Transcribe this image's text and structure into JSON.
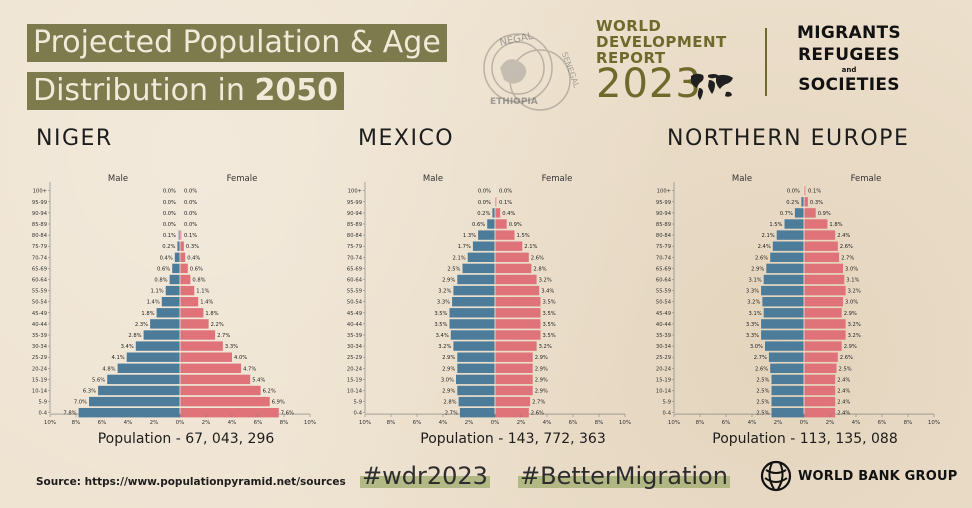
{
  "header": {
    "title_line1": "Projected Population & Age",
    "title_line2_prefix": "Distribution in ",
    "title_line2_year": "2050",
    "stamp_text_top": "NEGAL",
    "stamp_text_right": "SENEGAL",
    "stamp_text_bottom": "ETHIOPIA",
    "wdr_line1": "WORLD",
    "wdr_line2": "DEVELOPMENT",
    "wdr_line3": "REPORT",
    "wdr_year": "2023",
    "mig_line1": "MIGRANTS",
    "mig_line2": "REFUGEES",
    "mig_and": "and",
    "mig_line3": "SOCIETIES"
  },
  "footer": {
    "source": "Source: https://www.populationpyramid.net/sources",
    "hashtag1": "#wdr2023",
    "hashtag2": "#BetterMigration",
    "org": "WORLD BANK GROUP"
  },
  "colors": {
    "male": "#4c7c9a",
    "female": "#e0727a",
    "title_bg": "#7d7a4e",
    "accent_olive": "#6e6a2c",
    "region_highlight": "#8fb6bd"
  },
  "chart_data": [
    {
      "type": "bar",
      "orientation": "horizontal-pyramid",
      "region": "NIGER",
      "population_label": "Population - 67, 043, 296",
      "male_label": "Male",
      "female_label": "Female",
      "age_groups": [
        "100+",
        "95-99",
        "90-94",
        "85-89",
        "80-84",
        "75-79",
        "70-74",
        "65-69",
        "60-64",
        "55-59",
        "50-54",
        "45-49",
        "40-44",
        "35-39",
        "30-34",
        "25-29",
        "20-24",
        "15-19",
        "10-14",
        "5-9",
        "0-4"
      ],
      "male": [
        0.0,
        0.0,
        0.0,
        0.0,
        0.1,
        0.2,
        0.4,
        0.6,
        0.8,
        1.1,
        1.4,
        1.8,
        2.3,
        2.8,
        3.4,
        4.1,
        4.8,
        5.6,
        6.3,
        7.0,
        7.8
      ],
      "female": [
        0.0,
        0.0,
        0.0,
        0.0,
        0.1,
        0.3,
        0.4,
        0.6,
        0.8,
        1.1,
        1.4,
        1.8,
        2.2,
        2.7,
        3.3,
        4.0,
        4.7,
        5.4,
        6.2,
        6.9,
        7.6
      ],
      "male_labels": [
        "0.0%",
        "0.0%",
        "0.0%",
        "0.0%",
        "0.1%",
        "0.2%",
        "0.4%",
        "0.6%",
        "0.8%",
        "1.1%",
        "1.4%",
        "1.8%",
        "2.3%",
        "2.8%",
        "3.4%",
        "4.1%",
        "4.8%",
        "5.6%",
        "6.3%",
        "7.0%",
        "7.8%"
      ],
      "female_labels": [
        "0.0%",
        "0.0%",
        "0.0%",
        "0.0%",
        "0.1%",
        "0.3%",
        "0.4%",
        "0.6%",
        "0.8%",
        "1.1%",
        "1.4%",
        "1.8%",
        "2.2%",
        "2.7%",
        "3.3%",
        "4.0%",
        "4.7%",
        "5.4%",
        "6.2%",
        "6.9%",
        "7.6%"
      ],
      "x_ticks": [
        "10%",
        "8%",
        "6%",
        "4%",
        "2%",
        "0%",
        "2%",
        "4%",
        "6%",
        "8%",
        "10%"
      ],
      "xlim": [
        -10,
        10
      ]
    },
    {
      "type": "bar",
      "orientation": "horizontal-pyramid",
      "region": "MEXICO",
      "population_label": "Population - 143, 772, 363",
      "male_label": "Male",
      "female_label": "Female",
      "age_groups": [
        "100+",
        "95-99",
        "90-94",
        "85-89",
        "80-84",
        "75-79",
        "70-74",
        "65-69",
        "60-64",
        "55-59",
        "50-54",
        "45-49",
        "40-44",
        "35-39",
        "30-34",
        "25-29",
        "20-24",
        "15-19",
        "10-14",
        "5-9",
        "0-4"
      ],
      "male": [
        0.0,
        0.0,
        0.2,
        0.6,
        1.3,
        1.7,
        2.1,
        2.5,
        2.9,
        3.2,
        3.3,
        3.5,
        3.5,
        3.4,
        3.2,
        2.9,
        2.9,
        3.0,
        2.9,
        2.8,
        2.7
      ],
      "female": [
        0.0,
        0.1,
        0.4,
        0.9,
        1.5,
        2.1,
        2.6,
        2.8,
        3.2,
        3.4,
        3.5,
        3.5,
        3.5,
        3.5,
        3.2,
        2.9,
        2.9,
        2.9,
        2.9,
        2.7,
        2.6
      ],
      "male_labels": [
        "0.0%",
        "0.0%",
        "0.2%",
        "0.6%",
        "1.3%",
        "1.7%",
        "2.1%",
        "2.5%",
        "2.9%",
        "3.2%",
        "3.3%",
        "3.5%",
        "3.5%",
        "3.4%",
        "3.2%",
        "2.9%",
        "2.9%",
        "3.0%",
        "2.9%",
        "2.8%",
        "2.7%"
      ],
      "female_labels": [
        "0.0%",
        "0.1%",
        "0.4%",
        "0.9%",
        "1.5%",
        "2.1%",
        "2.6%",
        "2.8%",
        "3.2%",
        "3.4%",
        "3.5%",
        "3.5%",
        "3.5%",
        "3.5%",
        "3.2%",
        "2.9%",
        "2.9%",
        "2.9%",
        "2.9%",
        "2.7%",
        "2.6%"
      ],
      "x_ticks": [
        "10%",
        "8%",
        "6%",
        "4%",
        "2%",
        "0%",
        "2%",
        "4%",
        "6%",
        "8%",
        "10%"
      ],
      "xlim": [
        -10,
        10
      ]
    },
    {
      "type": "bar",
      "orientation": "horizontal-pyramid",
      "region": "NORTHERN EUROPE",
      "population_label": "Population - 113, 135, 088",
      "male_label": "Male",
      "female_label": "Female",
      "age_groups": [
        "100+",
        "95-99",
        "90-94",
        "85-89",
        "80-84",
        "75-79",
        "70-74",
        "65-69",
        "60-64",
        "55-59",
        "50-54",
        "45-49",
        "40-44",
        "35-39",
        "30-34",
        "25-29",
        "20-24",
        "15-19",
        "10-14",
        "5-9",
        "0-4"
      ],
      "male": [
        0.0,
        0.2,
        0.7,
        1.5,
        2.1,
        2.4,
        2.6,
        2.9,
        3.1,
        3.3,
        3.2,
        3.1,
        3.3,
        3.3,
        3.0,
        2.7,
        2.6,
        2.5,
        2.5,
        2.5,
        2.5
      ],
      "female": [
        0.1,
        0.3,
        0.9,
        1.8,
        2.4,
        2.6,
        2.7,
        3.0,
        3.1,
        3.2,
        3.0,
        2.9,
        3.2,
        3.2,
        2.9,
        2.6,
        2.5,
        2.4,
        2.4,
        2.4,
        2.4
      ],
      "male_labels": [
        "0.0%",
        "0.2%",
        "0.7%",
        "1.5%",
        "2.1%",
        "2.4%",
        "2.6%",
        "2.9%",
        "3.1%",
        "3.3%",
        "3.2%",
        "3.1%",
        "3.3%",
        "3.3%",
        "3.0%",
        "2.7%",
        "2.6%",
        "2.5%",
        "2.5%",
        "2.5%",
        "2.5%"
      ],
      "female_labels": [
        "0.1%",
        "0.3%",
        "0.9%",
        "1.8%",
        "2.4%",
        "2.6%",
        "2.7%",
        "3.0%",
        "3.1%",
        "3.2%",
        "3.0%",
        "2.9%",
        "3.2%",
        "3.2%",
        "2.9%",
        "2.6%",
        "2.5%",
        "2.4%",
        "2.4%",
        "2.4%",
        "2.4%"
      ],
      "x_ticks": [
        "10%",
        "8%",
        "6%",
        "4%",
        "2%",
        "0%",
        "2%",
        "4%",
        "6%",
        "8%",
        "10%"
      ],
      "xlim": [
        -10,
        10
      ]
    }
  ]
}
